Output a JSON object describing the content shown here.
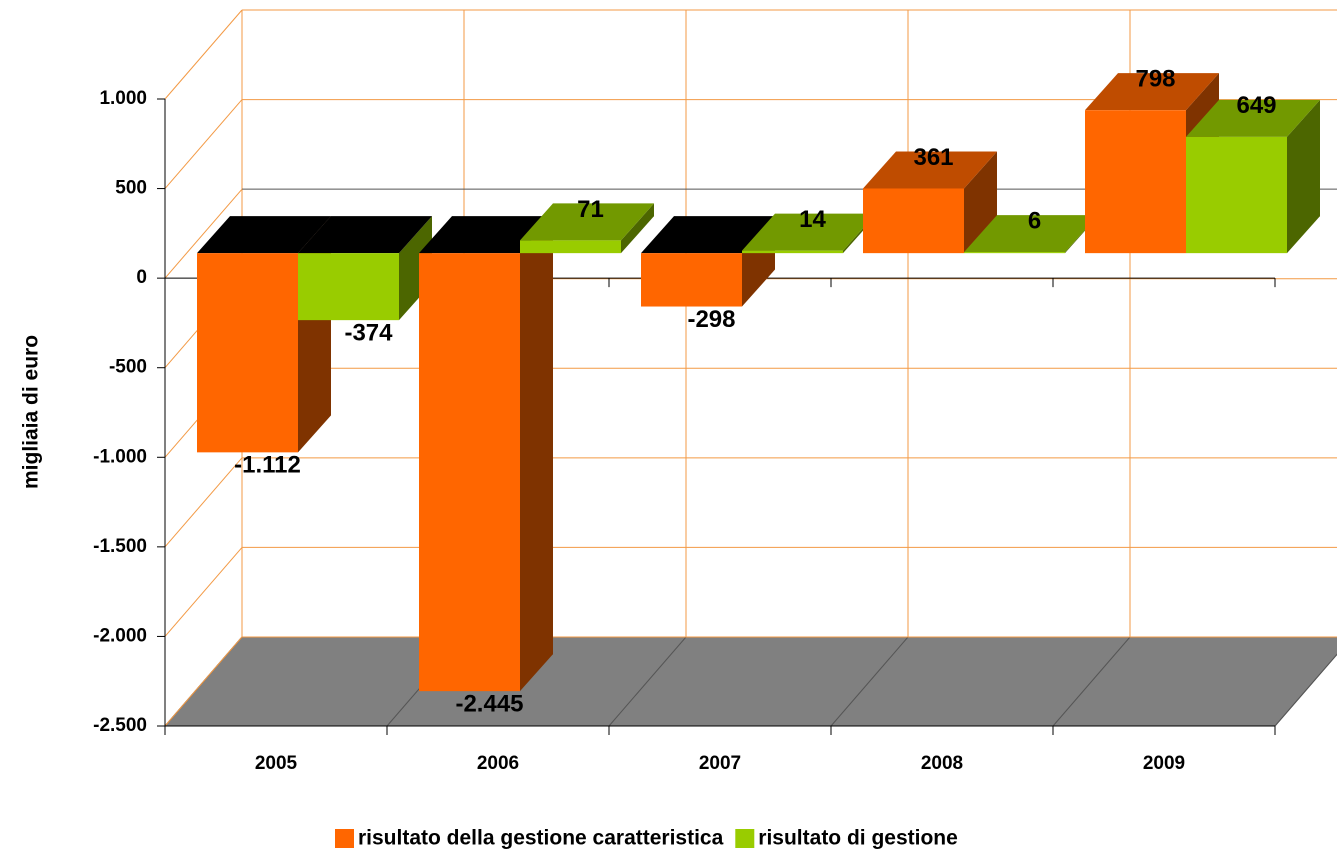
{
  "chart_data": {
    "type": "bar3d",
    "y_axis_label": "migliaia di euro",
    "categories": [
      "2005",
      "2006",
      "2007",
      "2008",
      "2009"
    ],
    "series": [
      {
        "name": "risultato della gestione caratteristica",
        "color": "#ff6600",
        "values": [
          -1112,
          -2445,
          -298,
          361,
          798
        ],
        "value_labels": [
          "-1.112",
          "-2.445",
          "-298",
          "361",
          "798"
        ]
      },
      {
        "name": "risultato di gestione",
        "color": "#99cc00",
        "values": [
          -374,
          71,
          14,
          6,
          649
        ],
        "value_labels": [
          "-374",
          "71",
          "14",
          "6",
          "649"
        ]
      }
    ],
    "ylim": [
      -2500,
      1000
    ],
    "yticks": [
      {
        "value": -2500,
        "label": "-2.500"
      },
      {
        "value": -2000,
        "label": "-2.000"
      },
      {
        "value": -1500,
        "label": "-1.500"
      },
      {
        "value": -1000,
        "label": "-1.000"
      },
      -500,
      0,
      500,
      {
        "value": 1000,
        "label": "1.000"
      }
    ],
    "grid": true
  }
}
